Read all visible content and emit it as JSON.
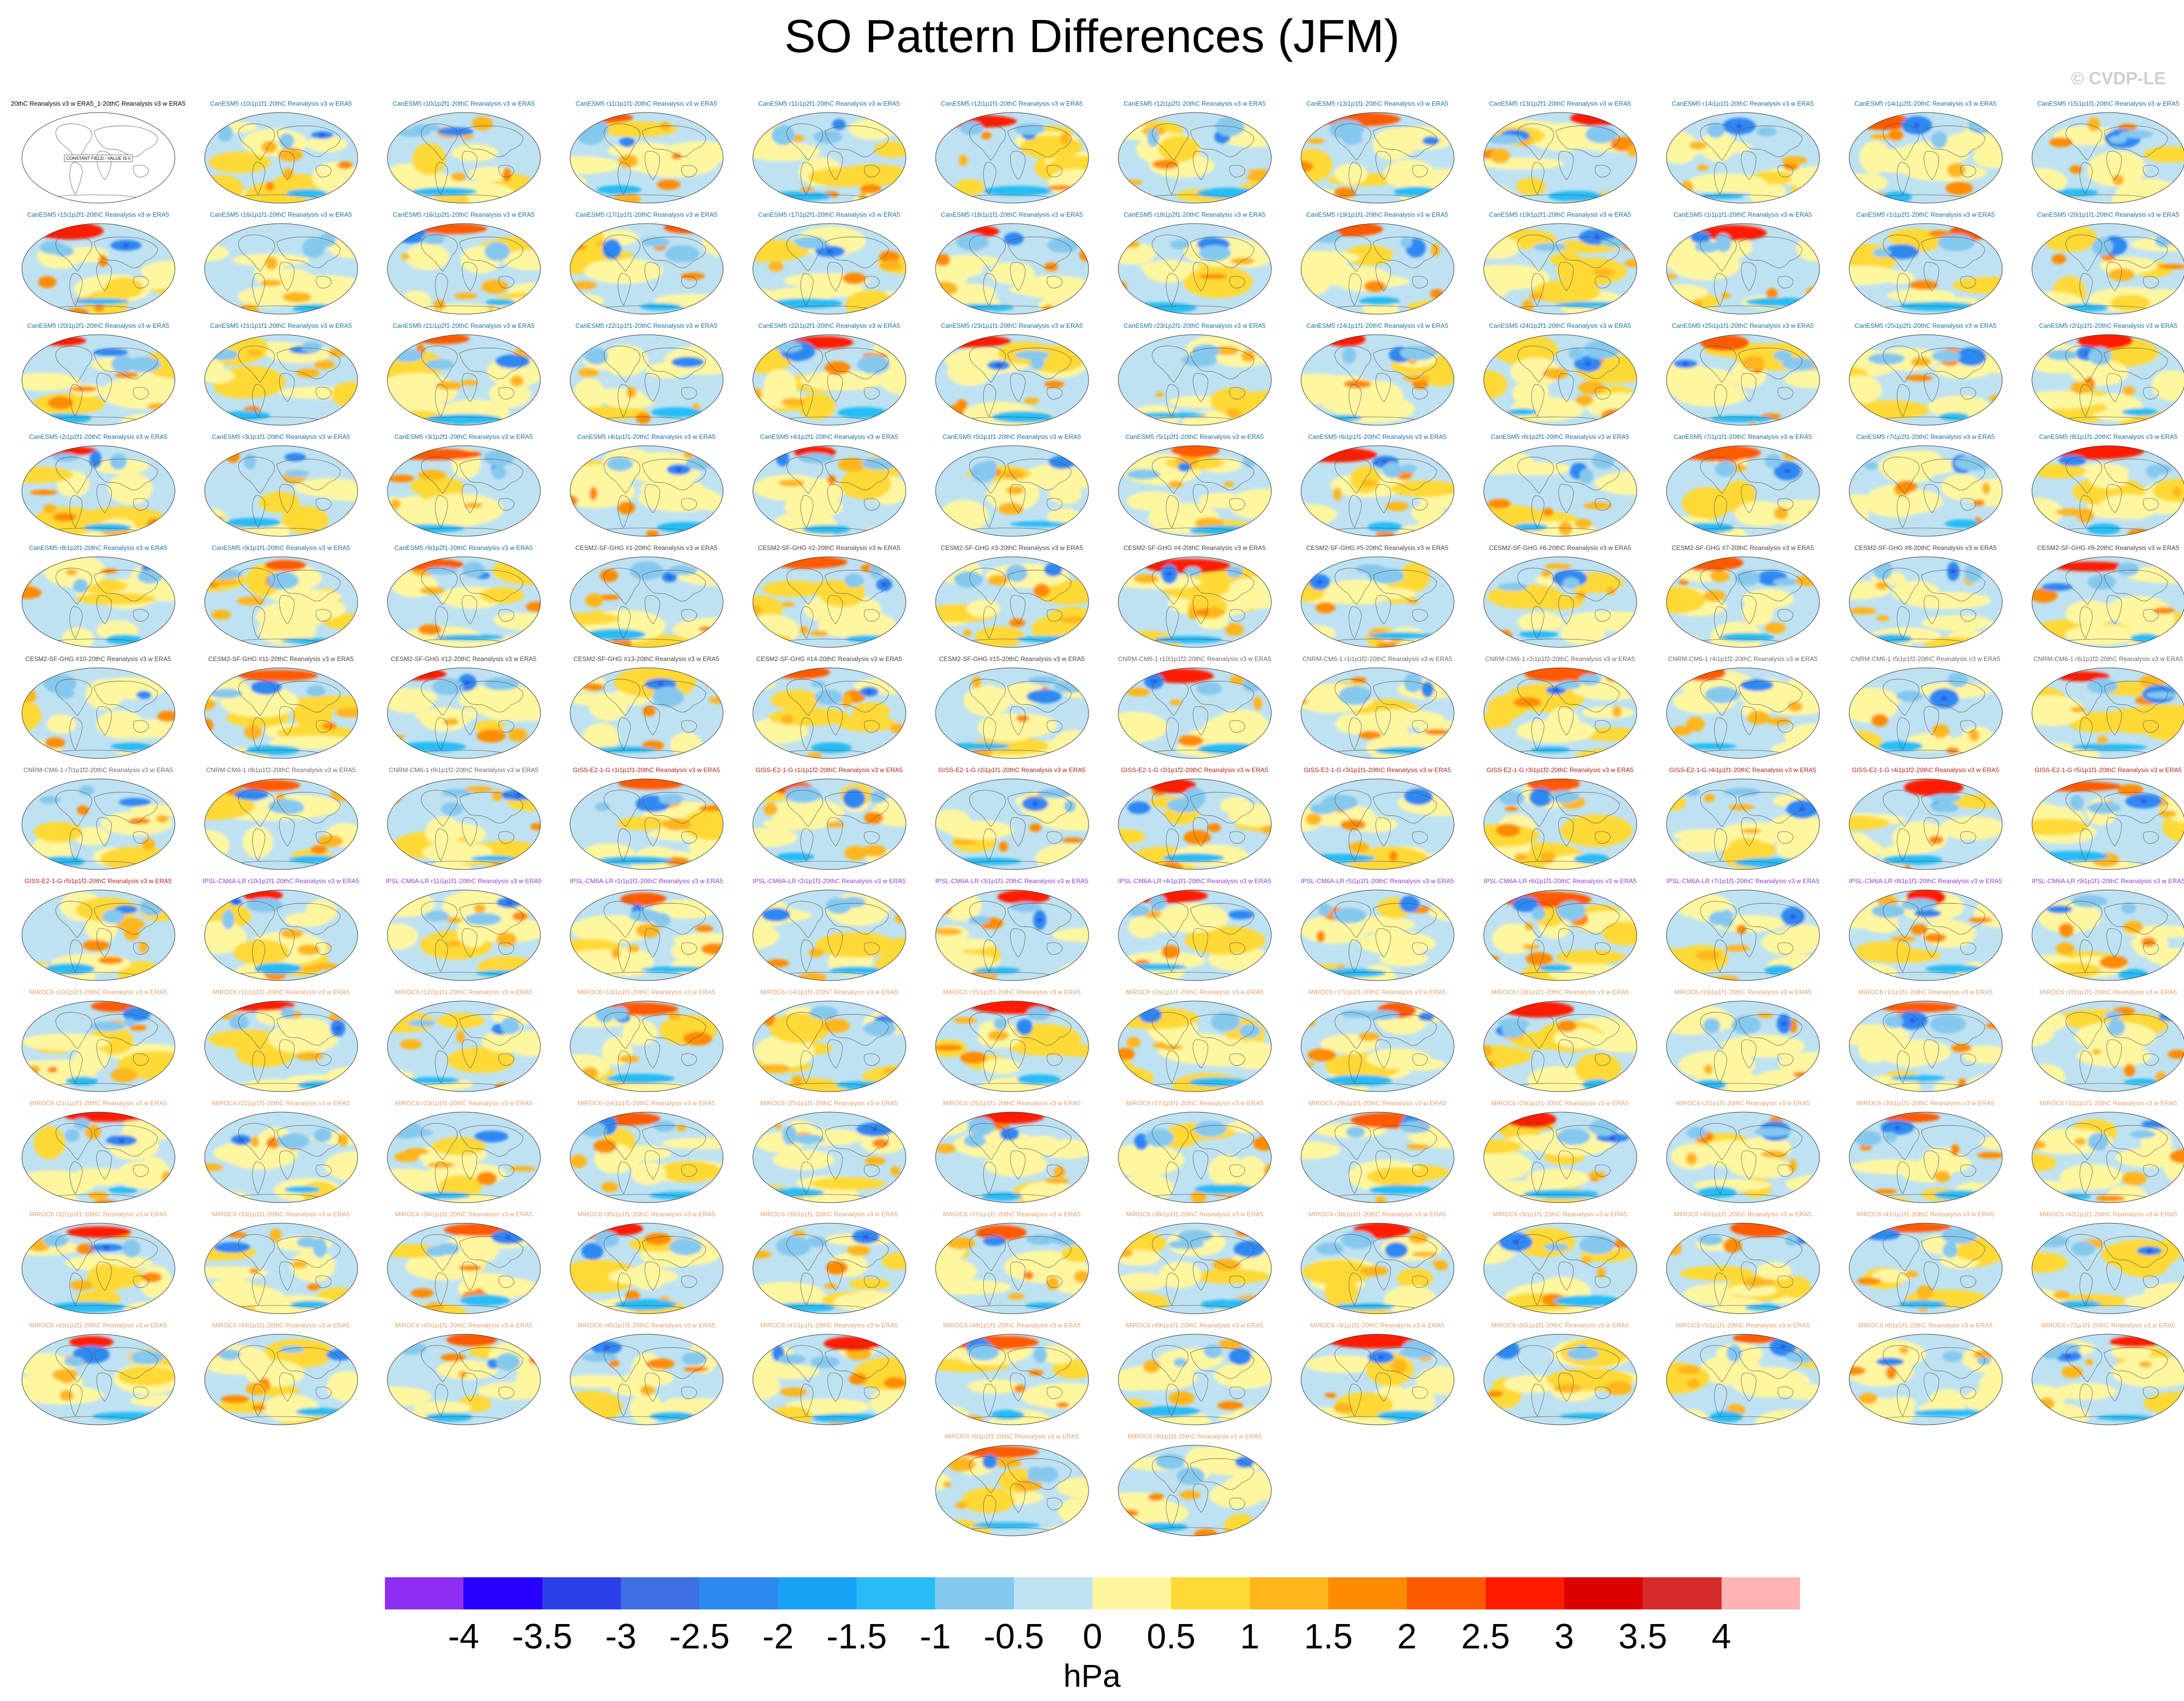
{
  "page": {
    "title": "SO Pattern Differences (JFM)",
    "copyright": "© CVDP-LE"
  },
  "chart_data": {
    "type": "heatmap",
    "description_type": "grid of global map panels, SO pattern difference fields",
    "units": "hPa",
    "colorbar": {
      "ticks": [
        "-4",
        "-3.5",
        "-3",
        "-2.5",
        "-2",
        "-1.5",
        "-1",
        "-0.5",
        "0",
        "0.5",
        "1",
        "1.5",
        "2",
        "2.5",
        "3",
        "3.5",
        "4"
      ],
      "colors": [
        "#8e2ef2",
        "#2800ff",
        "#2d3fe8",
        "#3e6fe4",
        "#2f88f2",
        "#19a3f5",
        "#27bcf5",
        "#85c8ee",
        "#bfe2f2",
        "#fff7a0",
        "#ffd935",
        "#ffb61a",
        "#ff8c00",
        "#ff5a00",
        "#ff1a00",
        "#dc0000",
        "#d42a2a",
        "#ffb3b3"
      ]
    },
    "panel_groups": [
      {
        "model": "20thC Reanalysis v3",
        "count": 1,
        "color": "#000000"
      },
      {
        "model": "CanESM5",
        "count": 50,
        "color": "#1a6fa0"
      },
      {
        "model": "CESM2-SF-GHG",
        "count": 15,
        "color": "#444444"
      },
      {
        "model": "CNRM-CM6-1",
        "count": 9,
        "color": "#6a6a6a"
      },
      {
        "model": "GISS-E2-1-G",
        "count": 10,
        "color": "#b02020"
      },
      {
        "model": "IPSL-CM6A-LR",
        "count": 11,
        "color": "#8a3fcf"
      },
      {
        "model": "MIROC6",
        "count": 50,
        "color": "#e0a070"
      }
    ],
    "panels": [
      {
        "label": "20thC Reanalysis v3 w ERA5_1-20thC Reanalysis v3 w ERA5",
        "note": "CONSTANT FIELD - VALUE IS 0"
      },
      {
        "label": "CanESM5 r10i1p1f1-20thC Reanalysis v3 w ERA5"
      },
      {
        "label": "CanESM5 r10i1p2f1-20thC Reanalysis v3 w ERA5"
      },
      {
        "label": "CanESM5 r11i1p1f1-20thC Reanalysis v3 w ERA5"
      },
      {
        "label": "CanESM5 r11i1p2f1-20thC Reanalysis v3 w ERA5"
      },
      {
        "label": "CanESM5 r12i1p1f1-20thC Reanalysis v3 w ERA5"
      },
      {
        "label": "CanESM5 r12i1p2f1-20thC Reanalysis v3 w ERA5"
      },
      {
        "label": "CanESM5 r13i1p1f1-20thC Reanalysis v3 w ERA5"
      },
      {
        "label": "CanESM5 r13i1p2f1-20thC Reanalysis v3 w ERA5"
      },
      {
        "label": "CanESM5 r14i1p1f1-20thC Reanalysis v3 w ERA5"
      },
      {
        "label": "CanESM5 r14i1p2f1-20thC Reanalysis v3 w ERA5"
      },
      {
        "label": "CanESM5 r15i1p1f1-20thC Reanalysis v3 w ERA5"
      },
      {
        "label": "CanESM5 r15i1p2f1-20thC Reanalysis v3 w ERA5"
      },
      {
        "label": "CanESM5 r16i1p1f1-20thC Reanalysis v3 w ERA5"
      },
      {
        "label": "CanESM5 r16i1p2f1-20thC Reanalysis v3 w ERA5"
      },
      {
        "label": "CanESM5 r17i1p1f1-20thC Reanalysis v3 w ERA5"
      },
      {
        "label": "CanESM5 r17i1p2f1-20thC Reanalysis v3 w ERA5"
      },
      {
        "label": "CanESM5 r18i1p1f1-20thC Reanalysis v3 w ERA5"
      },
      {
        "label": "CanESM5 r18i1p2f1-20thC Reanalysis v3 w ERA5"
      },
      {
        "label": "CanESM5 r19i1p1f1-20thC Reanalysis v3 w ERA5"
      },
      {
        "label": "CanESM5 r19i1p2f1-20thC Reanalysis v3 w ERA5"
      },
      {
        "label": "CanESM5 r1i1p1f1-20thC Reanalysis v3 w ERA5"
      },
      {
        "label": "CanESM5 r1i1p2f1-20thC Reanalysis v3 w ERA5"
      },
      {
        "label": "CanESM5 r20i1p1f1-20thC Reanalysis v3 w ERA5"
      },
      {
        "label": "CanESM5 r20i1p2f1-20thC Reanalysis v3 w ERA5"
      },
      {
        "label": "CanESM5 r21i1p1f1-20thC Reanalysis v3 w ERA5"
      },
      {
        "label": "CanESM5 r21i1p2f1-20thC Reanalysis v3 w ERA5"
      },
      {
        "label": "CanESM5 r22i1p1f1-20thC Reanalysis v3 w ERA5"
      },
      {
        "label": "CanESM5 r22i1p2f1-20thC Reanalysis v3 w ERA5"
      },
      {
        "label": "CanESM5 r23i1p1f1-20thC Reanalysis v3 w ERA5"
      },
      {
        "label": "CanESM5 r23i1p2f1-20thC Reanalysis v3 w ERA5"
      },
      {
        "label": "CanESM5 r24i1p1f1-20thC Reanalysis v3 w ERA5"
      },
      {
        "label": "CanESM5 r24i1p2f1-20thC Reanalysis v3 w ERA5"
      },
      {
        "label": "CanESM5 r25i1p1f1-20thC Reanalysis v3 w ERA5"
      },
      {
        "label": "CanESM5 r25i1p2f1-20thC Reanalysis v3 w ERA5"
      },
      {
        "label": "CanESM5 r2i1p1f1-20thC Reanalysis v3 w ERA5"
      },
      {
        "label": "CanESM5 r2i1p2f1-20thC Reanalysis v3 w ERA5"
      },
      {
        "label": "CanESM5 r3i1p1f1-20thC Reanalysis v3 w ERA5"
      },
      {
        "label": "CanESM5 r3i1p2f1-20thC Reanalysis v3 w ERA5"
      },
      {
        "label": "CanESM5 r4i1p1f1-20thC Reanalysis v3 w ERA5"
      },
      {
        "label": "CanESM5 r4i1p2f1-20thC Reanalysis v3 w ERA5"
      },
      {
        "label": "CanESM5 r5i1p1f1-20thC Reanalysis v3 w ERA5"
      },
      {
        "label": "CanESM5 r5i1p2f1-20thC Reanalysis v3 w ERA5"
      },
      {
        "label": "CanESM5 r6i1p1f1-20thC Reanalysis v3 w ERA5"
      },
      {
        "label": "CanESM5 r6i1p2f1-20thC Reanalysis v3 w ERA5"
      },
      {
        "label": "CanESM5 r7i1p1f1-20thC Reanalysis v3 w ERA5"
      },
      {
        "label": "CanESM5 r7i1p2f1-20thC Reanalysis v3 w ERA5"
      },
      {
        "label": "CanESM5 r8i1p1f1-20thC Reanalysis v3 w ERA5"
      },
      {
        "label": "CanESM5 r8i1p2f1-20thC Reanalysis v3 w ERA5"
      },
      {
        "label": "CanESM5 r9i1p1f1-20thC Reanalysis v3 w ERA5"
      },
      {
        "label": "CanESM5 r9i1p2f1-20thC Reanalysis v3 w ERA5"
      },
      {
        "label": "CESM2-SF-GHG #1-20thC Reanalysis v3 w ERA5"
      },
      {
        "label": "CESM2-SF-GHG #2-20thC Reanalysis v3 w ERA5"
      },
      {
        "label": "CESM2-SF-GHG #3-20thC Reanalysis v3 w ERA5"
      },
      {
        "label": "CESM2-SF-GHG #4-20thC Reanalysis v3 w ERA5"
      },
      {
        "label": "CESM2-SF-GHG #5-20thC Reanalysis v3 w ERA5"
      },
      {
        "label": "CESM2-SF-GHG #6-20thC Reanalysis v3 w ERA5"
      },
      {
        "label": "CESM2-SF-GHG #7-20thC Reanalysis v3 w ERA5"
      },
      {
        "label": "CESM2-SF-GHG #8-20thC Reanalysis v3 w ERA5"
      },
      {
        "label": "CESM2-SF-GHG #9-20thC Reanalysis v3 w ERA5"
      },
      {
        "label": "CESM2-SF-GHG #10-20thC Reanalysis v3 w ERA5"
      },
      {
        "label": "CESM2-SF-GHG #11-20thC Reanalysis v3 w ERA5"
      },
      {
        "label": "CESM2-SF-GHG #12-20thC Reanalysis v3 w ERA5"
      },
      {
        "label": "CESM2-SF-GHG #13-20thC Reanalysis v3 w ERA5"
      },
      {
        "label": "CESM2-SF-GHG #14-20thC Reanalysis v3 w ERA5"
      },
      {
        "label": "CESM2-SF-GHG #15-20thC Reanalysis v3 w ERA5"
      },
      {
        "label": "CNRM-CM6-1 r10i1p1f2-20thC Reanalysis v3 w ERA5"
      },
      {
        "label": "CNRM-CM6-1 r1i1p1f2-20thC Reanalysis v3 w ERA5"
      },
      {
        "label": "CNRM-CM6-1 r2i1p1f2-20thC Reanalysis v3 w ERA5"
      },
      {
        "label": "CNRM-CM6-1 r4i1p1f2-20thC Reanalysis v3 w ERA5"
      },
      {
        "label": "CNRM-CM6-1 r5i1p1f2-20thC Reanalysis v3 w ERA5"
      },
      {
        "label": "CNRM-CM6-1 r6i1p1f2-20thC Reanalysis v3 w ERA5"
      },
      {
        "label": "CNRM-CM6-1 r7i1p1f2-20thC Reanalysis v3 w ERA5"
      },
      {
        "label": "CNRM-CM6-1 r8i1p1f2-20thC Reanalysis v3 w ERA5"
      },
      {
        "label": "CNRM-CM6-1 r9i1p1f2-20thC Reanalysis v3 w ERA5"
      },
      {
        "label": "GISS-E2-1-G r1i1p1f1-20thC Reanalysis v3 w ERA5"
      },
      {
        "label": "GISS-E2-1-G r1i1p1f2-20thC Reanalysis v3 w ERA5"
      },
      {
        "label": "GISS-E2-1-G r2i1p1f1-20thC Reanalysis v3 w ERA5"
      },
      {
        "label": "GISS-E2-1-G r2i1p1f2-20thC Reanalysis v3 w ERA5"
      },
      {
        "label": "GISS-E2-1-G r3i1p1f1-20thC Reanalysis v3 w ERA5"
      },
      {
        "label": "GISS-E2-1-G r3i1p1f2-20thC Reanalysis v3 w ERA5"
      },
      {
        "label": "GISS-E2-1-G r4i1p1f1-20thC Reanalysis v3 w ERA5"
      },
      {
        "label": "GISS-E2-1-G r4i1p1f2-20thC Reanalysis v3 w ERA5"
      },
      {
        "label": "GISS-E2-1-G r5i1p1f1-20thC Reanalysis v3 w ERA5"
      },
      {
        "label": "GISS-E2-1-G r5i1p1f2-20thC Reanalysis v3 w ERA5"
      },
      {
        "label": "IPSL-CM6A-LR r10i1p1f1-20thC Reanalysis v3 w ERA5"
      },
      {
        "label": "IPSL-CM6A-LR r11i1p1f1-20thC Reanalysis v3 w ERA5"
      },
      {
        "label": "IPSL-CM6A-LR r1i1p1f1-20thC Reanalysis v3 w ERA5"
      },
      {
        "label": "IPSL-CM6A-LR r2i1p1f1-20thC Reanalysis v3 w ERA5"
      },
      {
        "label": "IPSL-CM6A-LR r3i1p1f1-20thC Reanalysis v3 w ERA5"
      },
      {
        "label": "IPSL-CM6A-LR r4i1p1f1-20thC Reanalysis v3 w ERA5"
      },
      {
        "label": "IPSL-CM6A-LR r5i1p1f1-20thC Reanalysis v3 w ERA5"
      },
      {
        "label": "IPSL-CM6A-LR r6i1p1f1-20thC Reanalysis v3 w ERA5"
      },
      {
        "label": "IPSL-CM6A-LR r7i1p1f1-20thC Reanalysis v3 w ERA5"
      },
      {
        "label": "IPSL-CM6A-LR r8i1p1f1-20thC Reanalysis v3 w ERA5"
      },
      {
        "label": "IPSL-CM6A-LR r9i1p1f1-20thC Reanalysis v3 w ERA5"
      },
      {
        "label": "MIROC6 r10i1p1f1-20thC Reanalysis v3 w ERA5"
      },
      {
        "label": "MIROC6 r11i1p1f1-20thC Reanalysis v3 w ERA5"
      },
      {
        "label": "MIROC6 r12i1p1f1-20thC Reanalysis v3 w ERA5"
      },
      {
        "label": "MIROC6 r13i1p1f1-20thC Reanalysis v3 w ERA5"
      },
      {
        "label": "MIROC6 r14i1p1f1-20thC Reanalysis v3 w ERA5"
      },
      {
        "label": "MIROC6 r15i1p1f1-20thC Reanalysis v3 w ERA5"
      },
      {
        "label": "MIROC6 r16i1p1f1-20thC Reanalysis v3 w ERA5"
      },
      {
        "label": "MIROC6 r17i1p1f1-20thC Reanalysis v3 w ERA5"
      },
      {
        "label": "MIROC6 r18i1p1f1-20thC Reanalysis v3 w ERA5"
      },
      {
        "label": "MIROC6 r19i1p1f1-20thC Reanalysis v3 w ERA5"
      },
      {
        "label": "MIROC6 r1i1p1f1-20thC Reanalysis v3 w ERA5"
      },
      {
        "label": "MIROC6 r20i1p1f1-20thC Reanalysis v3 w ERA5"
      },
      {
        "label": "MIROC6 r21i1p1f1-20thC Reanalysis v3 w ERA5"
      },
      {
        "label": "MIROC6 r22i1p1f1-20thC Reanalysis v3 w ERA5"
      },
      {
        "label": "MIROC6 r23i1p1f1-20thC Reanalysis v3 w ERA5"
      },
      {
        "label": "MIROC6 r24i1p1f1-20thC Reanalysis v3 w ERA5"
      },
      {
        "label": "MIROC6 r25i1p1f1-20thC Reanalysis v3 w ERA5"
      },
      {
        "label": "MIROC6 r26i1p1f1-20thC Reanalysis v3 w ERA5"
      },
      {
        "label": "MIROC6 r27i1p1f1-20thC Reanalysis v3 w ERA5"
      },
      {
        "label": "MIROC6 r28i1p1f1-20thC Reanalysis v3 w ERA5"
      },
      {
        "label": "MIROC6 r29i1p1f1-20thC Reanalysis v3 w ERA5"
      },
      {
        "label": "MIROC6 r2i1p1f1-20thC Reanalysis v3 w ERA5"
      },
      {
        "label": "MIROC6 r30i1p1f1-20thC Reanalysis v3 w ERA5"
      },
      {
        "label": "MIROC6 r31i1p1f1-20thC Reanalysis v3 w ERA5"
      },
      {
        "label": "MIROC6 r32i1p1f1-20thC Reanalysis v3 w ERA5"
      },
      {
        "label": "MIROC6 r33i1p1f1-20thC Reanalysis v3 w ERA5"
      },
      {
        "label": "MIROC6 r34i1p1f1-20thC Reanalysis v3 w ERA5"
      },
      {
        "label": "MIROC6 r35i1p1f1-20thC Reanalysis v3 w ERA5"
      },
      {
        "label": "MIROC6 r36i1p1f1-20thC Reanalysis v3 w ERA5"
      },
      {
        "label": "MIROC6 r37i1p1f1-20thC Reanalysis v3 w ERA5"
      },
      {
        "label": "MIROC6 r38i1p1f1-20thC Reanalysis v3 w ERA5"
      },
      {
        "label": "MIROC6 r39i1p1f1-20thC Reanalysis v3 w ERA5"
      },
      {
        "label": "MIROC6 r3i1p1f1-20thC Reanalysis v3 w ERA5"
      },
      {
        "label": "MIROC6 r40i1p1f1-20thC Reanalysis v3 w ERA5"
      },
      {
        "label": "MIROC6 r41i1p1f1-20thC Reanalysis v3 w ERA5"
      },
      {
        "label": "MIROC6 r42i1p1f1-20thC Reanalysis v3 w ERA5"
      },
      {
        "label": "MIROC6 r43i1p1f1-20thC Reanalysis v3 w ERA5"
      },
      {
        "label": "MIROC6 r44i1p1f1-20thC Reanalysis v3 w ERA5"
      },
      {
        "label": "MIROC6 r45i1p1f1-20thC Reanalysis v3 w ERA5"
      },
      {
        "label": "MIROC6 r46i1p1f1-20thC Reanalysis v3 w ERA5"
      },
      {
        "label": "MIROC6 r47i1p1f1-20thC Reanalysis v3 w ERA5"
      },
      {
        "label": "MIROC6 r48i1p1f1-20thC Reanalysis v3 w ERA5"
      },
      {
        "label": "MIROC6 r49i1p1f1-20thC Reanalysis v3 w ERA5"
      },
      {
        "label": "MIROC6 r4i1p1f1-20thC Reanalysis v3 w ERA5"
      },
      {
        "label": "MIROC6 r50i1p1f1-20thC Reanalysis v3 w ERA5"
      },
      {
        "label": "MIROC6 r5i1p1f1-20thC Reanalysis v3 w ERA5"
      },
      {
        "label": "MIROC6 r6i1p1f1-20thC Reanalysis v3 w ERA5"
      },
      {
        "label": "MIROC6 r7i1p1f1-20thC Reanalysis v3 w ERA5"
      },
      {
        "label": "MIROC6 r8i1p1f1-20thC Reanalysis v3 w ERA5"
      },
      {
        "label": "MIROC6 r9i1p1f1-20thC Reanalysis v3 w ERA5"
      }
    ]
  }
}
